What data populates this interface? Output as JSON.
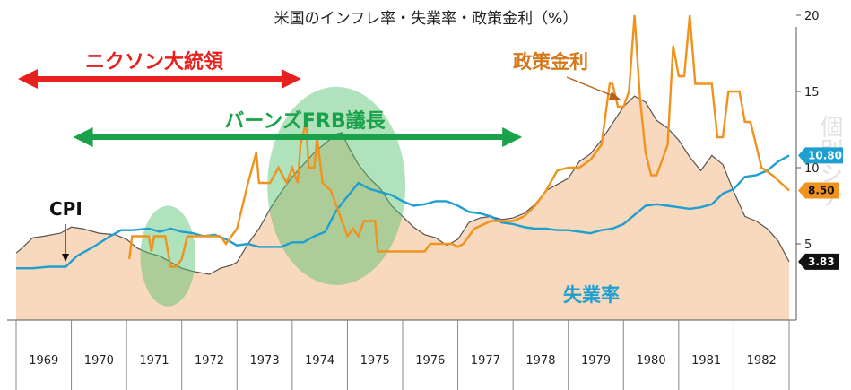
{
  "chart_data": {
    "type": "line",
    "title": "米国のインフレ率・失業率・政策金利（%）",
    "x_axis": {
      "range": [
        1969,
        1983
      ],
      "tick_labels": [
        "1969",
        "1970",
        "1971",
        "1972",
        "1973",
        "1974",
        "1975",
        "1976",
        "1977",
        "1978",
        "1979",
        "1980",
        "1981",
        "1982"
      ]
    },
    "y_axis": {
      "range": [
        0,
        22
      ],
      "ticks": [
        5,
        10,
        15,
        20
      ],
      "tick_labels": [
        "5",
        "10",
        "15",
        "20"
      ],
      "position": "right",
      "grid": false
    },
    "series": [
      {
        "name": "",
        "display": "area",
        "color": "#555555",
        "fill": "#f8d9bd",
        "last_label": "3.83",
        "points": [
          [
            1969.0,
            4.4
          ],
          [
            1969.1,
            4.7
          ],
          [
            1969.3,
            5.4
          ],
          [
            1969.5,
            5.5
          ],
          [
            1969.8,
            5.7
          ],
          [
            1970.0,
            6.1
          ],
          [
            1970.2,
            6.0
          ],
          [
            1970.5,
            5.7
          ],
          [
            1970.8,
            5.6
          ],
          [
            1971.0,
            5.3
          ],
          [
            1971.2,
            4.7
          ],
          [
            1971.4,
            4.4
          ],
          [
            1971.6,
            4.2
          ],
          [
            1971.8,
            3.8
          ],
          [
            1972.0,
            3.4
          ],
          [
            1972.2,
            3.2
          ],
          [
            1972.5,
            3.0
          ],
          [
            1972.7,
            3.4
          ],
          [
            1972.9,
            3.6
          ],
          [
            1973.0,
            3.8
          ],
          [
            1973.2,
            5.0
          ],
          [
            1973.4,
            6.0
          ],
          [
            1973.6,
            7.3
          ],
          [
            1973.8,
            8.4
          ],
          [
            1974.0,
            9.4
          ],
          [
            1974.2,
            10.2
          ],
          [
            1974.4,
            11.0
          ],
          [
            1974.6,
            11.6
          ],
          [
            1974.8,
            12.2
          ],
          [
            1974.9,
            12.3
          ],
          [
            1975.0,
            11.5
          ],
          [
            1975.2,
            10.2
          ],
          [
            1975.4,
            9.3
          ],
          [
            1975.6,
            8.6
          ],
          [
            1975.8,
            7.5
          ],
          [
            1976.0,
            6.8
          ],
          [
            1976.2,
            6.1
          ],
          [
            1976.4,
            5.6
          ],
          [
            1976.6,
            5.4
          ],
          [
            1976.8,
            4.9
          ],
          [
            1977.0,
            5.3
          ],
          [
            1977.2,
            6.4
          ],
          [
            1977.4,
            6.7
          ],
          [
            1977.6,
            6.8
          ],
          [
            1977.8,
            6.6
          ],
          [
            1978.0,
            6.7
          ],
          [
            1978.2,
            7.0
          ],
          [
            1978.4,
            7.6
          ],
          [
            1978.6,
            8.5
          ],
          [
            1978.8,
            8.9
          ],
          [
            1979.0,
            9.3
          ],
          [
            1979.2,
            10.4
          ],
          [
            1979.4,
            10.9
          ],
          [
            1979.6,
            11.8
          ],
          [
            1979.8,
            12.9
          ],
          [
            1980.0,
            14.0
          ],
          [
            1980.2,
            14.7
          ],
          [
            1980.4,
            14.3
          ],
          [
            1980.6,
            13.1
          ],
          [
            1980.8,
            12.6
          ],
          [
            1981.0,
            11.8
          ],
          [
            1981.2,
            10.7
          ],
          [
            1981.4,
            9.8
          ],
          [
            1981.6,
            10.8
          ],
          [
            1981.8,
            10.2
          ],
          [
            1982.0,
            8.4
          ],
          [
            1982.2,
            6.8
          ],
          [
            1982.4,
            6.5
          ],
          [
            1982.6,
            6.0
          ],
          [
            1982.8,
            5.2
          ],
          [
            1983.0,
            3.83
          ]
        ]
      },
      {
        "name": "失業率",
        "display": "line",
        "color": "#1e9fd0",
        "last_label": "10.80",
        "points": [
          [
            1969.0,
            3.4
          ],
          [
            1969.3,
            3.4
          ],
          [
            1969.6,
            3.5
          ],
          [
            1969.9,
            3.5
          ],
          [
            1970.1,
            4.2
          ],
          [
            1970.4,
            4.8
          ],
          [
            1970.7,
            5.5
          ],
          [
            1970.9,
            5.9
          ],
          [
            1971.1,
            5.9
          ],
          [
            1971.4,
            6.0
          ],
          [
            1971.6,
            5.8
          ],
          [
            1971.8,
            6.0
          ],
          [
            1972.0,
            5.8
          ],
          [
            1972.2,
            5.7
          ],
          [
            1972.4,
            5.5
          ],
          [
            1972.6,
            5.6
          ],
          [
            1972.8,
            5.3
          ],
          [
            1973.0,
            4.9
          ],
          [
            1973.2,
            5.0
          ],
          [
            1973.4,
            4.8
          ],
          [
            1973.6,
            4.8
          ],
          [
            1973.8,
            4.8
          ],
          [
            1974.0,
            5.1
          ],
          [
            1974.2,
            5.1
          ],
          [
            1974.4,
            5.5
          ],
          [
            1974.6,
            5.8
          ],
          [
            1974.8,
            7.2
          ],
          [
            1975.0,
            8.1
          ],
          [
            1975.2,
            9.0
          ],
          [
            1975.4,
            8.6
          ],
          [
            1975.6,
            8.4
          ],
          [
            1975.8,
            8.2
          ],
          [
            1976.0,
            7.8
          ],
          [
            1976.2,
            7.5
          ],
          [
            1976.4,
            7.6
          ],
          [
            1976.6,
            7.8
          ],
          [
            1976.8,
            7.8
          ],
          [
            1977.0,
            7.5
          ],
          [
            1977.2,
            7.1
          ],
          [
            1977.4,
            7.0
          ],
          [
            1977.6,
            6.8
          ],
          [
            1977.8,
            6.4
          ],
          [
            1978.0,
            6.3
          ],
          [
            1978.2,
            6.1
          ],
          [
            1978.4,
            6.0
          ],
          [
            1978.6,
            6.0
          ],
          [
            1978.8,
            5.9
          ],
          [
            1979.0,
            5.9
          ],
          [
            1979.2,
            5.8
          ],
          [
            1979.4,
            5.7
          ],
          [
            1979.6,
            5.9
          ],
          [
            1979.8,
            6.0
          ],
          [
            1980.0,
            6.3
          ],
          [
            1980.2,
            6.9
          ],
          [
            1980.4,
            7.5
          ],
          [
            1980.6,
            7.6
          ],
          [
            1980.8,
            7.5
          ],
          [
            1981.0,
            7.4
          ],
          [
            1981.2,
            7.3
          ],
          [
            1981.4,
            7.4
          ],
          [
            1981.6,
            7.6
          ],
          [
            1981.8,
            8.3
          ],
          [
            1982.0,
            8.6
          ],
          [
            1982.2,
            9.4
          ],
          [
            1982.4,
            9.5
          ],
          [
            1982.6,
            9.8
          ],
          [
            1982.8,
            10.4
          ],
          [
            1983.0,
            10.8
          ]
        ]
      },
      {
        "name": "政策金利",
        "display": "line",
        "color": "#f0921e",
        "last_label": "8.50",
        "points": [
          [
            1971.05,
            4.0
          ],
          [
            1971.1,
            5.5
          ],
          [
            1971.15,
            5.5
          ],
          [
            1971.4,
            5.5
          ],
          [
            1971.45,
            4.5
          ],
          [
            1971.5,
            5.5
          ],
          [
            1971.7,
            5.5
          ],
          [
            1971.8,
            3.5
          ],
          [
            1971.9,
            3.5
          ],
          [
            1972.0,
            4.0
          ],
          [
            1972.1,
            5.5
          ],
          [
            1972.7,
            5.5
          ],
          [
            1972.8,
            5.0
          ],
          [
            1972.9,
            5.5
          ],
          [
            1973.0,
            6.0
          ],
          [
            1973.2,
            9.0
          ],
          [
            1973.35,
            11.0
          ],
          [
            1973.4,
            9.0
          ],
          [
            1973.6,
            9.0
          ],
          [
            1973.75,
            10.0
          ],
          [
            1973.9,
            9.0
          ],
          [
            1974.0,
            10.0
          ],
          [
            1974.1,
            9.0
          ],
          [
            1974.15,
            11.5
          ],
          [
            1974.25,
            13.0
          ],
          [
            1974.3,
            10.0
          ],
          [
            1974.4,
            10.0
          ],
          [
            1974.45,
            12.0
          ],
          [
            1974.55,
            9.0
          ],
          [
            1974.7,
            8.5
          ],
          [
            1974.9,
            6.5
          ],
          [
            1975.0,
            5.5
          ],
          [
            1975.1,
            6.0
          ],
          [
            1975.2,
            5.5
          ],
          [
            1975.3,
            6.5
          ],
          [
            1975.5,
            6.5
          ],
          [
            1975.55,
            4.5
          ],
          [
            1975.8,
            4.5
          ],
          [
            1976.0,
            4.5
          ],
          [
            1976.4,
            4.5
          ],
          [
            1976.5,
            5.0
          ],
          [
            1976.9,
            5.0
          ],
          [
            1977.0,
            4.8
          ],
          [
            1977.1,
            5.0
          ],
          [
            1977.3,
            6.0
          ],
          [
            1977.6,
            6.5
          ],
          [
            1977.8,
            6.5
          ],
          [
            1978.0,
            6.5
          ],
          [
            1978.2,
            6.8
          ],
          [
            1978.4,
            7.5
          ],
          [
            1978.6,
            8.5
          ],
          [
            1978.8,
            9.8
          ],
          [
            1979.0,
            10.0
          ],
          [
            1979.2,
            10.0
          ],
          [
            1979.4,
            10.5
          ],
          [
            1979.6,
            11.5
          ],
          [
            1979.75,
            15.5
          ],
          [
            1979.8,
            15.5
          ],
          [
            1979.9,
            14.0
          ],
          [
            1980.0,
            14.0
          ],
          [
            1980.1,
            15.0
          ],
          [
            1980.2,
            20.0
          ],
          [
            1980.3,
            14.5
          ],
          [
            1980.4,
            11.0
          ],
          [
            1980.5,
            9.5
          ],
          [
            1980.6,
            9.5
          ],
          [
            1980.8,
            11.5
          ],
          [
            1980.9,
            18.0
          ],
          [
            1981.0,
            16.0
          ],
          [
            1981.1,
            16.0
          ],
          [
            1981.2,
            20.0
          ],
          [
            1981.3,
            15.5
          ],
          [
            1981.6,
            15.5
          ],
          [
            1981.7,
            12.0
          ],
          [
            1981.8,
            12.0
          ],
          [
            1981.9,
            15.0
          ],
          [
            1982.1,
            15.0
          ],
          [
            1982.2,
            13.0
          ],
          [
            1982.3,
            13.0
          ],
          [
            1982.4,
            11.5
          ],
          [
            1982.5,
            10.0
          ],
          [
            1982.7,
            9.5
          ],
          [
            1983.0,
            8.5
          ]
        ]
      }
    ],
    "annotations": {
      "cpi": "CPI",
      "rate": "政策金利",
      "unemployment": "失業率",
      "nixon": {
        "text": "ニクソン大統領",
        "from": 1969.0,
        "to": 1974.0,
        "color": "#e8201e"
      },
      "burns": {
        "text": "バーンズFRB議長",
        "from": 1970.0,
        "to": 1978.0,
        "color": "#1aa14b"
      },
      "ovals": [
        {
          "cx": 1971.75,
          "cy": 4.2,
          "rx": 0.5,
          "ry": 3.3
        },
        {
          "cx": 1974.8,
          "cy": 8.8,
          "rx": 1.25,
          "ry": 6.5
        }
      ],
      "watermark": "個別シナ"
    }
  }
}
